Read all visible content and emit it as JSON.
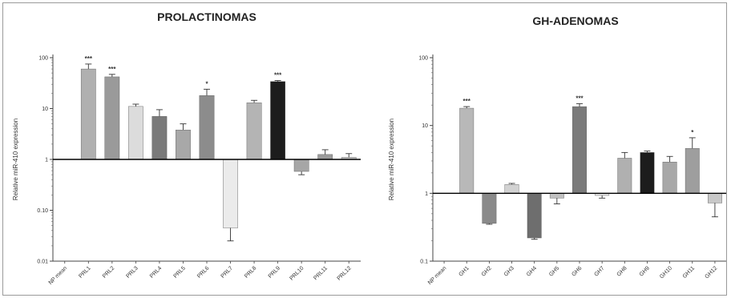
{
  "chart_data": [
    {
      "type": "bar",
      "title": "PROLACTINOMAS",
      "ylabel": "Relative miR-410 expression",
      "yscale": "log",
      "baseline": 1,
      "ylim": [
        0.01,
        100
      ],
      "yticks": [
        "0.01",
        "0.10",
        "1",
        "10",
        "100"
      ],
      "tick_values": [
        0.01,
        0.1,
        1,
        10,
        100
      ],
      "grid": false,
      "categories": [
        "NP mean",
        "PRL1",
        "PRL2",
        "PRL3",
        "PRL4",
        "PRL5",
        "PRL6",
        "PRL7",
        "PRL8",
        "PRL9",
        "PRL10",
        "PRL11",
        "PRL12"
      ],
      "values": [
        1,
        60,
        42,
        11,
        7,
        3.8,
        18,
        0.045,
        13,
        34,
        0.58,
        1.25,
        1.1
      ],
      "errors": [
        0,
        15,
        5,
        1.2,
        2.5,
        1.2,
        6,
        0.02,
        1.5,
        1.5,
        0.08,
        0.3,
        0.2
      ],
      "significance": [
        "",
        "***",
        "***",
        "",
        "",
        "",
        "*",
        "",
        "",
        "***",
        "",
        "",
        ""
      ],
      "colors": [
        "#ffffff",
        "#b0b0b0",
        "#9a9a9a",
        "#dcdcdc",
        "#7a7a7a",
        "#a8a8a8",
        "#8c8c8c",
        "#ebebeb",
        "#b4b4b4",
        "#1c1c1c",
        "#a6a6a6",
        "#9c9c9c",
        "#c6c6c6"
      ]
    },
    {
      "type": "bar",
      "title": "GH-ADENOMAS",
      "ylabel": "Relative miR-410 expression",
      "yscale": "log",
      "baseline": 1,
      "ylim": [
        0.1,
        100
      ],
      "yticks": [
        "0.1",
        "1",
        "10",
        "100"
      ],
      "tick_values": [
        0.1,
        1,
        10,
        100
      ],
      "grid": false,
      "categories": [
        "NP mean",
        "GH1",
        "GH2",
        "GH3",
        "GH4",
        "GH5",
        "GH6",
        "GH7",
        "GH8",
        "GH9",
        "GH10",
        "GH11",
        "GH12"
      ],
      "values": [
        1,
        18,
        0.36,
        1.35,
        0.22,
        0.85,
        19,
        0.93,
        3.3,
        4,
        2.9,
        4.6,
        0.72
      ],
      "errors": [
        0,
        1,
        0.01,
        0.05,
        0.01,
        0.15,
        2,
        0.08,
        0.7,
        0.2,
        0.6,
        2,
        0.27
      ],
      "significance": [
        "",
        "***",
        "",
        "",
        "",
        "",
        "***",
        "",
        "",
        "",
        "",
        "*",
        ""
      ],
      "colors": [
        "#ffffff",
        "#b8b8b8",
        "#8a8a8a",
        "#d2d2d2",
        "#6e6e6e",
        "#c0c0c0",
        "#7a7a7a",
        "#e4e4e4",
        "#b0b0b0",
        "#1c1c1c",
        "#a8a8a8",
        "#9e9e9e",
        "#c8c8c8"
      ]
    }
  ]
}
